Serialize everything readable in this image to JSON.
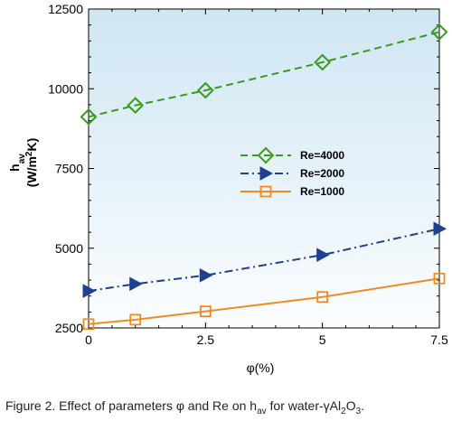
{
  "chart_data": {
    "type": "line",
    "title": "",
    "xlabel": "φ(%)",
    "ylabel": {
      "main": "h",
      "sub": "av",
      "unit": "(W/m",
      "unit_sup": "2",
      "unit_end": "K)"
    },
    "x": [
      0,
      1,
      2.5,
      5,
      7.5
    ],
    "xlim": [
      0,
      7.5
    ],
    "ylim": [
      2500,
      12500
    ],
    "xticks": [
      "0",
      "2.5",
      "5",
      "7.5"
    ],
    "xtick_values": [
      0,
      2.5,
      5,
      7.5
    ],
    "yticks": [
      "2500",
      "5000",
      "7500",
      "10000",
      "12500"
    ],
    "ytick_values": [
      2500,
      5000,
      7500,
      10000,
      12500
    ],
    "grid": false,
    "legend_position": "center-right",
    "background": "light blue gradient",
    "series": [
      {
        "name": "Re=4000",
        "values": [
          9120,
          9480,
          9950,
          10830,
          11780
        ],
        "color": "#3a9a1e",
        "marker": "diamond",
        "line": "dashed"
      },
      {
        "name": "Re=2000",
        "values": [
          3660,
          3880,
          4150,
          4790,
          5610
        ],
        "color": "#1f3f8f",
        "marker": "triangle-right",
        "line": "dash-dot"
      },
      {
        "name": "Re=1000",
        "values": [
          2620,
          2760,
          3020,
          3470,
          4050
        ],
        "color": "#f08c1e",
        "marker": "square",
        "line": "solid"
      }
    ]
  },
  "caption": {
    "prefix": "Figure 2. Effect of parameters φ and Re on h",
    "sub1": "av",
    "mid": " for water-γAl",
    "sub2": "2",
    "mid2": "O",
    "sub3": "3",
    "suffix": "."
  }
}
